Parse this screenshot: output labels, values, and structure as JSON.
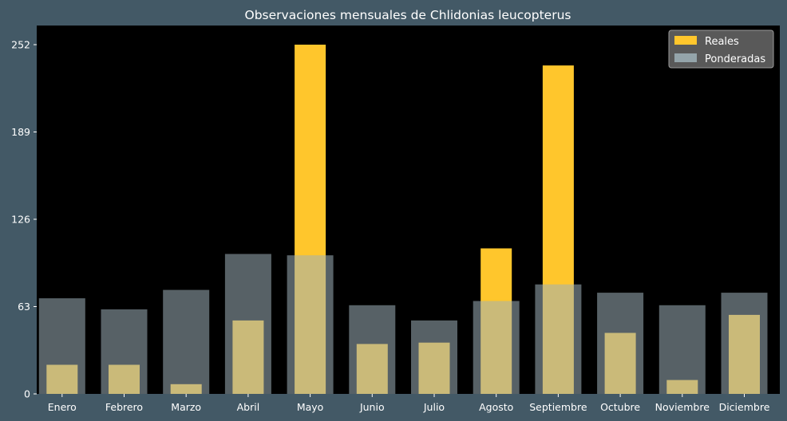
{
  "chart_data": {
    "type": "bar",
    "title": "Observaciones mensuales de Chlidonias leucopterus",
    "xlabel": "",
    "ylabel": "",
    "categories": [
      "Enero",
      "Febrero",
      "Marzo",
      "Abril",
      "Mayo",
      "Junio",
      "Julio",
      "Agosto",
      "Septiembre",
      "Octubre",
      "Noviembre",
      "Diciembre"
    ],
    "series": [
      {
        "name": "Reales",
        "color": "#ffc62c",
        "values": [
          21,
          21,
          7,
          53,
          252,
          36,
          37,
          105,
          237,
          44,
          10,
          57
        ]
      },
      {
        "name": "Ponderadas",
        "color": "#9fb1b9",
        "opacity": 0.55,
        "values": [
          69,
          61,
          75,
          101,
          100,
          64,
          53,
          67,
          79,
          73,
          64,
          73
        ]
      }
    ],
    "yticks": [
      0,
      63,
      126,
      189,
      252
    ],
    "ylim": [
      0,
      252
    ],
    "legend_position": "top-right",
    "grid": false,
    "plot_background": "#000000"
  }
}
